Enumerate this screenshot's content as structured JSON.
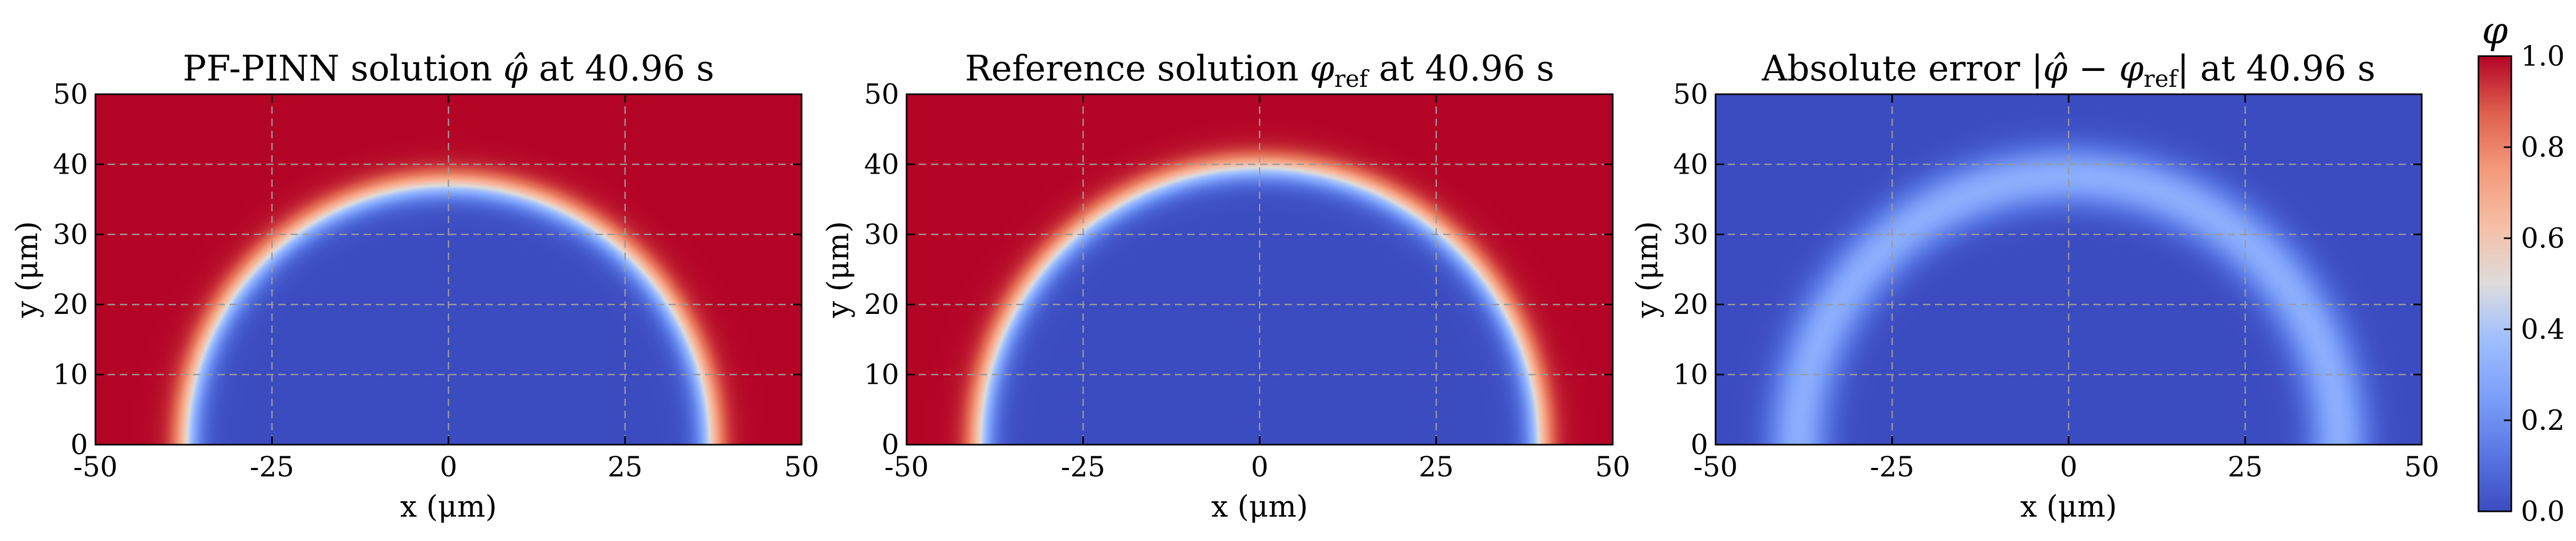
{
  "chart_data": [
    {
      "type": "heatmap",
      "title": "PF-PINN solution φ̂ at 40.96 s",
      "title_parts": {
        "text": "PF-PINN solution ",
        "symbol": "φ̂",
        "suffix": " at 40.96 s"
      },
      "xlabel": "x (μm)",
      "ylabel": "y (μm)",
      "xlim": [
        -50,
        50
      ],
      "ylim": [
        0,
        50
      ],
      "xticks": [
        -50,
        -25,
        0,
        25,
        50
      ],
      "yticks": [
        0,
        10,
        20,
        30,
        40,
        50
      ],
      "grid": true,
      "field": {
        "shape": "semicircular-interface",
        "center": [
          0,
          0
        ],
        "radius": 37,
        "interface_width": 4.5,
        "inside_value": 0.0,
        "outside_value": 1.0
      }
    },
    {
      "type": "heatmap",
      "title": "Reference solution φref at 40.96 s",
      "title_parts": {
        "text": "Reference solution ",
        "symbol": "φ",
        "subscript": "ref",
        "suffix": " at 40.96 s"
      },
      "xlabel": "x (μm)",
      "ylabel": "y (μm)",
      "xlim": [
        -50,
        50
      ],
      "ylim": [
        0,
        50
      ],
      "xticks": [
        -50,
        -25,
        0,
        25,
        50
      ],
      "yticks": [
        0,
        10,
        20,
        30,
        40,
        50
      ],
      "grid": true,
      "field": {
        "shape": "semicircular-interface",
        "center": [
          0,
          0
        ],
        "radius": 39.5,
        "interface_width": 4.5,
        "inside_value": 0.0,
        "outside_value": 1.0
      }
    },
    {
      "type": "heatmap",
      "title": "Absolute error |φ̂ − φref| at 40.96 s",
      "title_parts": {
        "text": "Absolute error |",
        "symbol": "φ̂",
        "mid": " − ",
        "symbol2": "φ",
        "subscript": "ref",
        "suffix": "| at 40.96 s"
      },
      "xlabel": "x (μm)",
      "ylabel": "y (μm)",
      "xlim": [
        -50,
        50
      ],
      "ylim": [
        0,
        50
      ],
      "xticks": [
        -50,
        -25,
        0,
        25,
        50
      ],
      "yticks": [
        0,
        10,
        20,
        30,
        40,
        50
      ],
      "grid": true,
      "field": {
        "shape": "semicircular-band",
        "center": [
          0,
          0
        ],
        "radius": 38.3,
        "band_width": 3.0,
        "peak_value": 0.31,
        "background_value": 0.0
      }
    }
  ],
  "colorbar": {
    "label": "φ",
    "colormap": "coolwarm",
    "range": [
      0.0,
      1.0
    ],
    "ticks": [
      "0.0",
      "0.2",
      "0.4",
      "0.6",
      "0.8",
      "1.0"
    ],
    "colormap_stops": [
      [
        0.0,
        "#3b4cc0"
      ],
      [
        0.125,
        "#5977e3"
      ],
      [
        0.25,
        "#7b9ff9"
      ],
      [
        0.375,
        "#9ebeff"
      ],
      [
        0.5,
        "#dddcdc"
      ],
      [
        0.625,
        "#f6bfa6"
      ],
      [
        0.75,
        "#f49a7b"
      ],
      [
        0.875,
        "#de604d"
      ],
      [
        1.0,
        "#b40426"
      ]
    ]
  }
}
